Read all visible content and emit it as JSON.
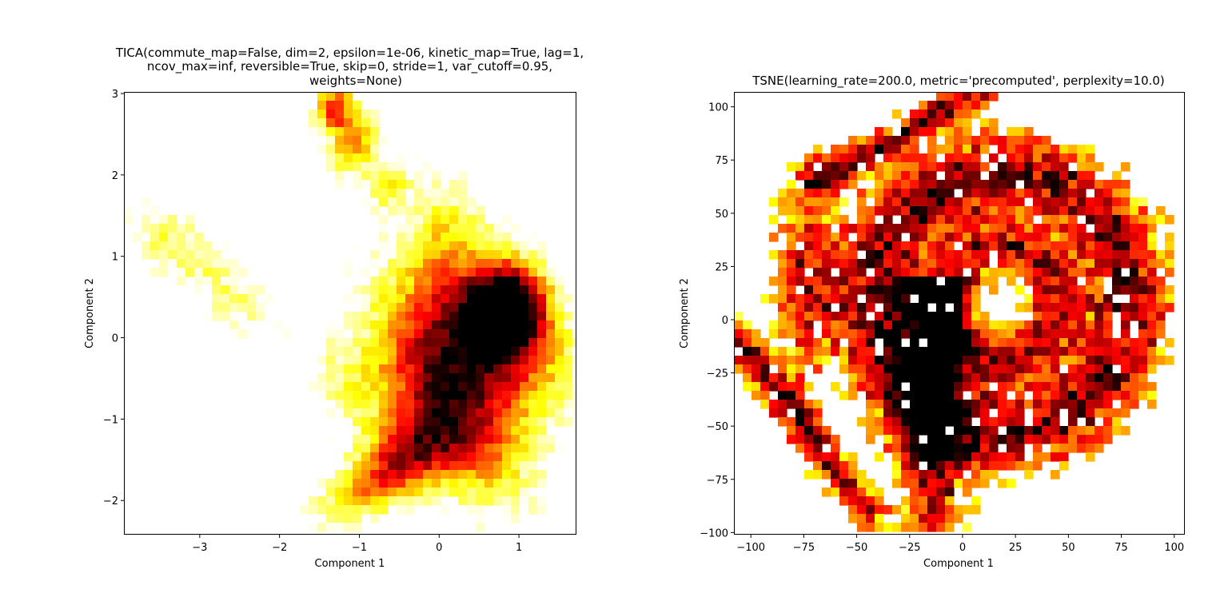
{
  "chart_data": [
    {
      "type": "heatmap",
      "title_lines": [
        "TICA(commute_map=False, dim=2, epsilon=1e-06, kinetic_map=True, lag=1,",
        "ncov_max=inf, reversible=True, skip=0, stride=1, var_cutoff=0.95,",
        "weights=None)"
      ],
      "xlabel": "Component 1",
      "ylabel": "Component 2",
      "xlim": [
        -3.95,
        1.72
      ],
      "ylim": [
        -2.42,
        3.02
      ],
      "xticks": [
        -3,
        -2,
        -1,
        0,
        1
      ],
      "xtick_labels": [
        "−3",
        "−2",
        "−1",
        "0",
        "1"
      ],
      "yticks": [
        -2,
        -1,
        0,
        1,
        2,
        3
      ],
      "ytick_labels": [
        "−2",
        "−1",
        "0",
        "1",
        "2",
        "3"
      ],
      "colormap": "hot_r",
      "density_regions": [
        {
          "x": 0.55,
          "y": 0.1,
          "sx": 0.55,
          "sy": 0.8,
          "rot": 0.78,
          "weight": 1.0
        },
        {
          "x": 0.9,
          "y": 0.4,
          "sx": 0.3,
          "sy": 0.35,
          "rot": 0.0,
          "weight": 0.9
        },
        {
          "x": 0.1,
          "y": -0.9,
          "sx": 0.45,
          "sy": 0.9,
          "rot": 0.65,
          "weight": 0.8
        },
        {
          "x": -0.45,
          "y": -1.45,
          "sx": 0.45,
          "sy": 0.3,
          "rot": 0.4,
          "weight": 0.65
        },
        {
          "x": -1.0,
          "y": -1.95,
          "sx": 0.5,
          "sy": 0.22,
          "rot": 0.4,
          "weight": 0.4
        },
        {
          "x": -1.3,
          "y": 2.8,
          "sx": 0.18,
          "sy": 0.22,
          "rot": 0.0,
          "weight": 0.75
        },
        {
          "x": -1.05,
          "y": 2.35,
          "sx": 0.18,
          "sy": 0.28,
          "rot": -0.6,
          "weight": 0.55
        },
        {
          "x": -0.65,
          "y": 1.9,
          "sx": 0.2,
          "sy": 0.25,
          "rot": -0.6,
          "weight": 0.35
        },
        {
          "x": -3.4,
          "y": 1.2,
          "sx": 0.4,
          "sy": 0.3,
          "rot": -0.6,
          "weight": 0.3
        },
        {
          "x": -2.6,
          "y": 0.5,
          "sx": 0.5,
          "sy": 0.25,
          "rot": -0.7,
          "weight": 0.28
        },
        {
          "x": -1.2,
          "y": -0.6,
          "sx": 0.3,
          "sy": 0.45,
          "rot": 0.6,
          "weight": 0.25
        },
        {
          "x": 0.1,
          "y": 1.5,
          "sx": 0.35,
          "sy": 0.4,
          "rot": 0.0,
          "weight": 0.25
        }
      ]
    },
    {
      "type": "heatmap",
      "title_lines": [
        "TSNE(learning_rate=200.0, metric='precomputed', perplexity=10.0)"
      ],
      "xlabel": "Component 1",
      "ylabel": "Component 2",
      "xlim": [
        -108,
        105
      ],
      "ylim": [
        -101,
        107
      ],
      "xticks": [
        -100,
        -75,
        -50,
        -25,
        0,
        25,
        50,
        75,
        100
      ],
      "xtick_labels": [
        "−100",
        "−75",
        "−50",
        "−25",
        "0",
        "25",
        "50",
        "75",
        "100"
      ],
      "yticks": [
        -100,
        -75,
        -50,
        -25,
        0,
        25,
        50,
        75,
        100
      ],
      "ytick_labels": [
        "−100",
        "−75",
        "−50",
        "−25",
        "0",
        "25",
        "50",
        "75",
        "100"
      ],
      "colormap": "hot_r",
      "structure": "spiral ring of density centered near (20, 10) with a long diagonal band from (-105, -5) to (15, 107)"
    }
  ]
}
